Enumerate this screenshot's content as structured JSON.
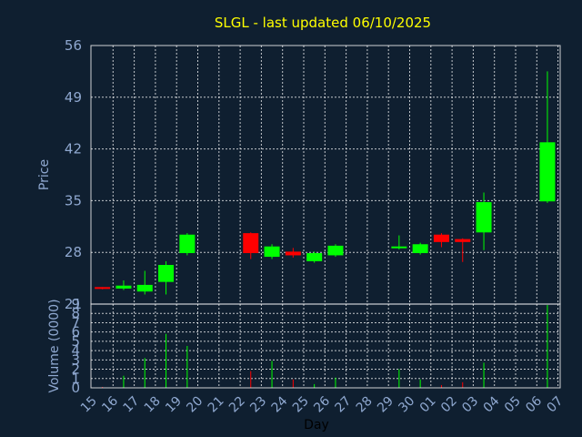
{
  "chart_data": {
    "type": "candlestick",
    "title": "SLGL - last updated 06/10/2025",
    "ylabel": "Price",
    "volume_label": "Volume (0000)",
    "xlabel": "Day",
    "categories": [
      "15",
      "16",
      "17",
      "18",
      "19",
      "20",
      "21",
      "22",
      "23",
      "24",
      "25",
      "26",
      "27",
      "28",
      "29",
      "30",
      "01",
      "02",
      "03",
      "04",
      "05",
      "06",
      "07"
    ],
    "price_ylim": [
      21,
      56
    ],
    "price_ticks": [
      "56",
      "49",
      "42",
      "35",
      "28",
      "21"
    ],
    "volume_ylim": [
      0,
      9
    ],
    "volume_ticks": [
      "0",
      "1",
      "2",
      "3",
      "4",
      "5",
      "6",
      "7",
      "8",
      "9"
    ],
    "up_color": "#00ff00",
    "down_color": "#ff0000",
    "candles": [
      {
        "x": "15",
        "open": 23.3,
        "close": 23.1,
        "high": 23.3,
        "low": 23.0,
        "volume": 0.1
      },
      {
        "x": "16",
        "open": 23.1,
        "close": 23.5,
        "high": 24.2,
        "low": 22.9,
        "volume": 1.3
      },
      {
        "x": "17",
        "open": 22.7,
        "close": 23.6,
        "high": 25.5,
        "low": 22.3,
        "volume": 3.2
      },
      {
        "x": "18",
        "open": 24.0,
        "close": 26.3,
        "high": 26.8,
        "low": 22.3,
        "volume": 5.8
      },
      {
        "x": "19",
        "open": 27.9,
        "close": 30.4,
        "high": 30.6,
        "low": 27.6,
        "volume": 4.5
      },
      {
        "x": "22",
        "open": 30.6,
        "close": 27.9,
        "high": 30.7,
        "low": 27.1,
        "volume": 1.8
      },
      {
        "x": "23",
        "open": 27.4,
        "close": 28.8,
        "high": 29.1,
        "low": 27.1,
        "volume": 2.9
      },
      {
        "x": "24",
        "open": 28.1,
        "close": 27.6,
        "high": 28.6,
        "low": 27.3,
        "volume": 0.9
      },
      {
        "x": "25",
        "open": 26.8,
        "close": 27.9,
        "high": 28.1,
        "low": 26.6,
        "volume": 0.4
      },
      {
        "x": "26",
        "open": 27.6,
        "close": 28.9,
        "high": 29.1,
        "low": 27.4,
        "volume": 1.1
      },
      {
        "x": "29",
        "open": 28.6,
        "close": 28.8,
        "high": 30.3,
        "low": 28.4,
        "volume": 2.0
      },
      {
        "x": "30",
        "open": 27.9,
        "close": 29.1,
        "high": 29.3,
        "low": 27.7,
        "volume": 0.9
      },
      {
        "x": "01",
        "open": 30.4,
        "close": 29.4,
        "high": 30.6,
        "low": 28.7,
        "volume": 0.3
      },
      {
        "x": "02",
        "open": 29.8,
        "close": 29.4,
        "high": 29.9,
        "low": 26.7,
        "volume": 0.6
      },
      {
        "x": "03",
        "open": 30.7,
        "close": 34.8,
        "high": 36.1,
        "low": 28.3,
        "volume": 2.7
      },
      {
        "x": "06",
        "open": 34.9,
        "close": 42.9,
        "high": 52.5,
        "low": 34.7,
        "volume": 9.1
      }
    ]
  }
}
